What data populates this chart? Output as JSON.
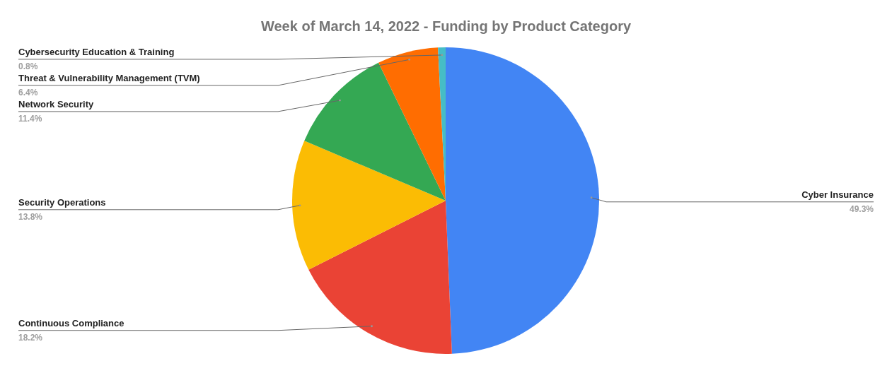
{
  "chart_data": {
    "type": "pie",
    "title": "Week of March 14, 2022 - Funding by Product Category",
    "categories": [
      "Cyber Insurance",
      "Continuous Compliance",
      "Security Operations",
      "Network Security",
      "Threat & Vulnerability Management (TVM)",
      "Cybersecurity Education & Training"
    ],
    "values": [
      49.3,
      18.2,
      13.8,
      11.4,
      6.4,
      0.8
    ],
    "colors": [
      "#4285f4",
      "#ea4335",
      "#fbbc04",
      "#34a853",
      "#ff6d01",
      "#46bdc6"
    ],
    "value_labels": [
      "49.3%",
      "18.2%",
      "13.8%",
      "11.4%",
      "6.4%",
      "0.8%"
    ]
  }
}
